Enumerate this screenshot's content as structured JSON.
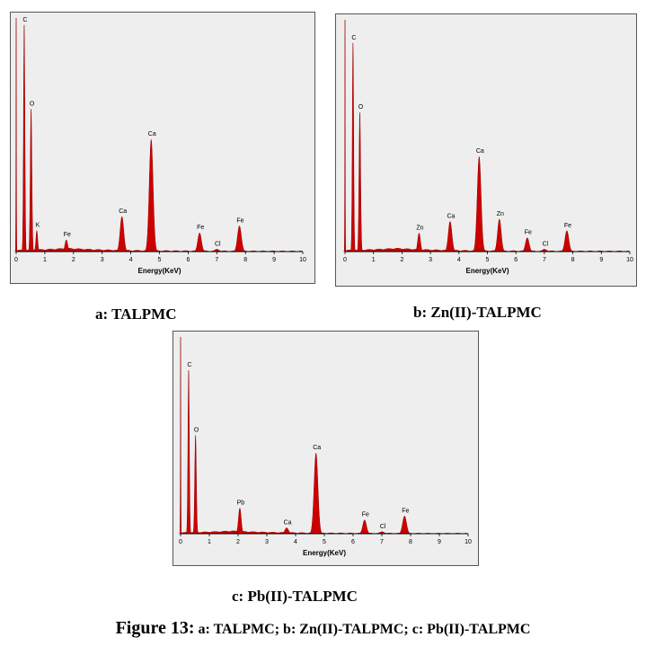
{
  "figure": {
    "number": "Figure 13:",
    "text": " a: TALPMC; b: Zn(II)-TALPMC; c: Pb(II)-TALPMC"
  },
  "colors": {
    "peak_fill": "#cc0000",
    "peak_stroke": "#990000",
    "panel_bg": "#eeeeee"
  },
  "chart_data": [
    {
      "type": "area",
      "title": "a: TALPMC",
      "xlabel": "Energy(KeV)",
      "ylabel": "",
      "xlim": [
        0,
        10
      ],
      "x_ticks": [
        "0",
        "1",
        "2",
        "3",
        "4",
        "5",
        "6",
        "7",
        "8",
        "9",
        "10"
      ],
      "grid": false,
      "peaks": [
        {
          "label": "",
          "x": 0.0,
          "intensity": 1.0,
          "width": 0.02
        },
        {
          "label": "C",
          "x": 0.28,
          "intensity": 0.97,
          "width": 0.06
        },
        {
          "label": "O",
          "x": 0.52,
          "intensity": 0.61,
          "width": 0.07
        },
        {
          "label": "K",
          "x": 0.72,
          "intensity": 0.09,
          "width": 0.08
        },
        {
          "label": "Fe",
          "x": 1.75,
          "intensity": 0.05,
          "width": 0.12
        },
        {
          "label": "Ca",
          "x": 3.69,
          "intensity": 0.15,
          "width": 0.16
        },
        {
          "label": "Ca",
          "x": 4.71,
          "intensity": 0.48,
          "width": 0.17
        },
        {
          "label": "Fe",
          "x": 6.4,
          "intensity": 0.08,
          "width": 0.16
        },
        {
          "label": "Cl",
          "x": 7.0,
          "intensity": 0.01,
          "width": 0.2
        },
        {
          "label": "Fe",
          "x": 7.79,
          "intensity": 0.11,
          "width": 0.17
        }
      ]
    },
    {
      "type": "area",
      "title": "b: Zn(II)-TALPMC",
      "xlabel": "Energy(KeV)",
      "ylabel": "",
      "xlim": [
        0,
        10
      ],
      "x_ticks": [
        "0",
        "1",
        "2",
        "3",
        "4",
        "5",
        "6",
        "7",
        "8",
        "9",
        "10"
      ],
      "grid": false,
      "peaks": [
        {
          "label": "",
          "x": 0.0,
          "intensity": 1.0,
          "width": 0.02
        },
        {
          "label": "C",
          "x": 0.28,
          "intensity": 0.9,
          "width": 0.06
        },
        {
          "label": "O",
          "x": 0.52,
          "intensity": 0.6,
          "width": 0.07
        },
        {
          "label": "Zn",
          "x": 2.6,
          "intensity": 0.08,
          "width": 0.12
        },
        {
          "label": "Ca",
          "x": 3.69,
          "intensity": 0.13,
          "width": 0.16
        },
        {
          "label": "Ca",
          "x": 4.71,
          "intensity": 0.41,
          "width": 0.17
        },
        {
          "label": "Zn",
          "x": 5.42,
          "intensity": 0.14,
          "width": 0.16
        },
        {
          "label": "Fe",
          "x": 6.4,
          "intensity": 0.06,
          "width": 0.16
        },
        {
          "label": "Cl",
          "x": 7.0,
          "intensity": 0.01,
          "width": 0.2
        },
        {
          "label": "Fe",
          "x": 7.79,
          "intensity": 0.09,
          "width": 0.17
        }
      ]
    },
    {
      "type": "area",
      "title": "c: Pb(II)-TALPMC",
      "xlabel": "Energy(KeV)",
      "ylabel": "",
      "xlim": [
        0,
        10
      ],
      "x_ticks": [
        "0",
        "1",
        "2",
        "3",
        "4",
        "5",
        "6",
        "7",
        "8",
        "9",
        "10"
      ],
      "grid": false,
      "peaks": [
        {
          "label": "",
          "x": 0.0,
          "intensity": 1.0,
          "width": 0.02
        },
        {
          "label": "C",
          "x": 0.28,
          "intensity": 0.83,
          "width": 0.06
        },
        {
          "label": "O",
          "x": 0.52,
          "intensity": 0.5,
          "width": 0.07
        },
        {
          "label": "Pb",
          "x": 2.06,
          "intensity": 0.13,
          "width": 0.12
        },
        {
          "label": "Ca",
          "x": 3.69,
          "intensity": 0.03,
          "width": 0.16
        },
        {
          "label": "Ca",
          "x": 4.71,
          "intensity": 0.41,
          "width": 0.17
        },
        {
          "label": "Fe",
          "x": 6.4,
          "intensity": 0.07,
          "width": 0.16
        },
        {
          "label": "Cl",
          "x": 7.0,
          "intensity": 0.01,
          "width": 0.2
        },
        {
          "label": "Fe",
          "x": 7.79,
          "intensity": 0.09,
          "width": 0.17
        }
      ]
    }
  ]
}
